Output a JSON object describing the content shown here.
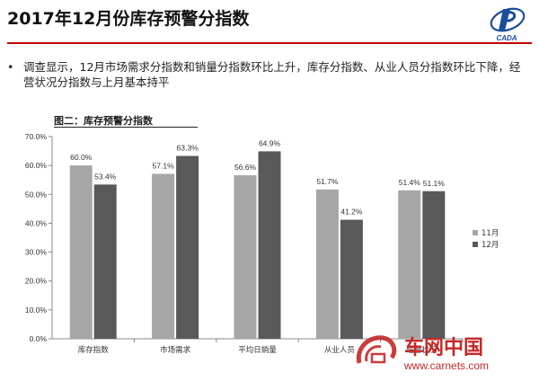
{
  "header": {
    "title": "2017年12月份库存预警分指数",
    "logo_text": "CADA"
  },
  "summary": {
    "bullet_symbol": "•",
    "text": "调查显示，12月市场需求分指数和销量分指数环比上升，库存分指数、从业人员分指数环比下降，经营状况分指数与上月基本持平"
  },
  "figure": {
    "title": "图二：库存预警分指数"
  },
  "chart_data": {
    "type": "bar",
    "title": "",
    "xlabel": "",
    "ylabel": "",
    "categories": [
      "库存指数",
      "市场需求",
      "平均日销量",
      "从业人员",
      "经营状况"
    ],
    "series": [
      {
        "name": "11月",
        "values": [
          60.0,
          57.1,
          56.6,
          51.7,
          51.4
        ],
        "color": "#a6a6a6"
      },
      {
        "name": "12月",
        "values": [
          53.4,
          63.3,
          64.9,
          41.2,
          51.1
        ],
        "color": "#595959"
      }
    ],
    "value_labels": [
      [
        "60.0%",
        "57.1%",
        "56.6%",
        "51.7%",
        "51.4%"
      ],
      [
        "53.4%",
        "63.3%",
        "64.9%",
        "41.2%",
        "51.1%"
      ]
    ],
    "y_ticks": [
      "0.0%",
      "10.0%",
      "20.0%",
      "30.0%",
      "40.0%",
      "50.0%",
      "60.0%",
      "70.0%"
    ],
    "ylim": [
      0,
      70
    ],
    "grid": false,
    "legend": "right"
  },
  "watermark": {
    "brand": "车网中国",
    "url": "www.carnets.com"
  },
  "colors": {
    "accent": "#c00000",
    "logo_blue": "#1a4e9c",
    "watermark_red": "#c62828"
  }
}
